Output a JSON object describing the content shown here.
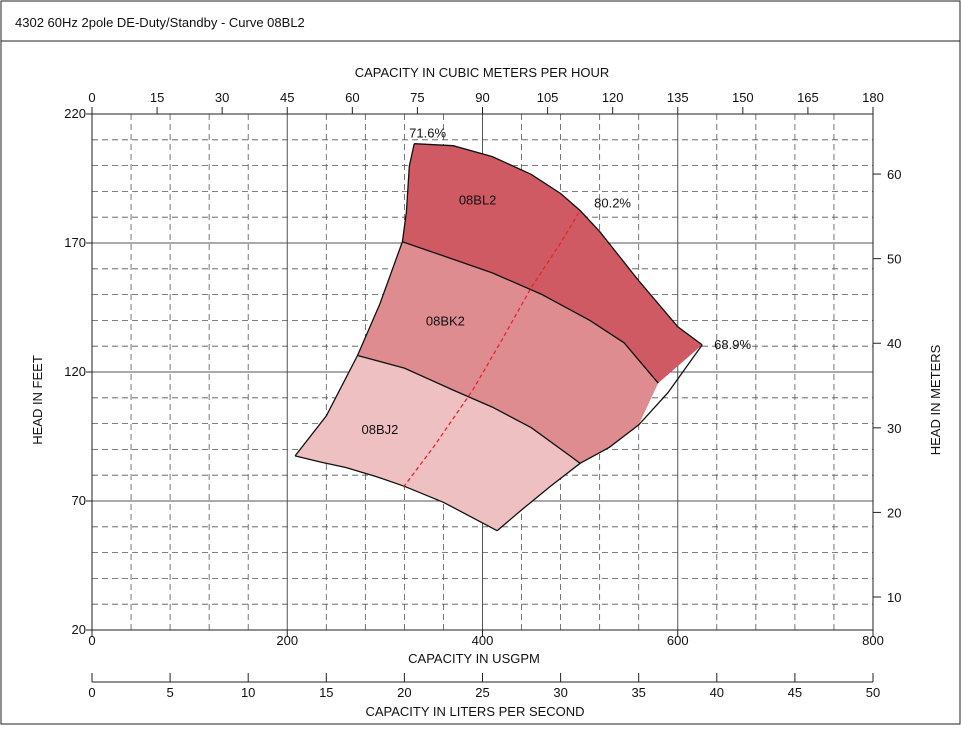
{
  "header": {
    "title": "4302 60Hz 2pole DE-Duty/Standby - Curve 08BL2"
  },
  "colors": {
    "region_08BL2": "#cf5a64",
    "region_08BK2": "#df8c91",
    "region_08BJ2": "#eec0c2",
    "bep_line": "#e8242c",
    "grid": "#555555",
    "border": "#222222"
  },
  "chart_data": {
    "type": "area",
    "title": "",
    "axes": {
      "x_bottom": {
        "label": "CAPACITY IN USGPM",
        "range": [
          0,
          800
        ],
        "ticks": [
          0,
          200,
          400,
          600,
          800
        ],
        "grid_step": 40
      },
      "x_bottom2": {
        "label": "CAPACITY IN LITERS PER SECOND",
        "range": [
          0,
          50
        ],
        "ticks": [
          0,
          5,
          10,
          15,
          20,
          25,
          30,
          35,
          40,
          45,
          50
        ]
      },
      "x_top": {
        "label": "CAPACITY IN CUBIC METERS PER HOUR",
        "range": [
          0,
          180
        ],
        "ticks": [
          0,
          15,
          30,
          45,
          60,
          75,
          90,
          105,
          120,
          135,
          150,
          165,
          180
        ]
      },
      "y_left": {
        "label": "HEAD IN FEET",
        "range": [
          20,
          220
        ],
        "ticks": [
          20,
          70,
          120,
          170,
          220
        ],
        "grid_step": 10
      },
      "y_right": {
        "label": "HEAD IN METERS",
        "range": [
          6.1,
          67.1
        ],
        "ticks": [
          10,
          20,
          30,
          40,
          50,
          60
        ]
      }
    },
    "grid": true,
    "regions": [
      {
        "name": "08BL2",
        "fill": "#cf5a64",
        "top_curve": [
          [
            330,
            208.5
          ],
          [
            370,
            207.7
          ],
          [
            410,
            203.5
          ],
          [
            450,
            196.6
          ],
          [
            480,
            189.2
          ],
          [
            500,
            182.6
          ],
          [
            520,
            174.4
          ],
          [
            560,
            155.4
          ],
          [
            600,
            137.5
          ],
          [
            625,
            130.5
          ]
        ],
        "bottom_curve": [
          [
            318,
            170.5
          ],
          [
            360,
            165.0
          ],
          [
            410,
            158.4
          ],
          [
            460,
            150.2
          ],
          [
            510,
            140.0
          ],
          [
            545,
            131.3
          ],
          [
            580,
            115.7
          ],
          [
            625,
            130.5
          ]
        ]
      },
      {
        "name": "08BK2",
        "fill": "#df8c91",
        "top_curve": [
          [
            318,
            170.5
          ],
          [
            360,
            165.0
          ],
          [
            410,
            158.4
          ],
          [
            460,
            150.2
          ],
          [
            510,
            140.0
          ],
          [
            545,
            131.3
          ],
          [
            580,
            115.7
          ]
        ],
        "bottom_curve": [
          [
            272,
            126.4
          ],
          [
            320,
            121.5
          ],
          [
            370,
            113.0
          ],
          [
            410,
            106.4
          ],
          [
            450,
            98.4
          ],
          [
            490,
            87.4
          ],
          [
            500,
            84.6
          ]
        ]
      },
      {
        "name": "08BJ2",
        "fill": "#eec0c2",
        "top_curve": [
          [
            272,
            126.4
          ],
          [
            320,
            121.5
          ],
          [
            370,
            113.0
          ],
          [
            410,
            106.4
          ],
          [
            450,
            98.4
          ],
          [
            490,
            87.4
          ],
          [
            500,
            84.6
          ]
        ],
        "bottom_curve": [
          [
            208,
            87.5
          ],
          [
            235,
            85.0
          ],
          [
            260,
            83.0
          ],
          [
            290,
            79.6
          ],
          [
            320,
            75.7
          ],
          [
            360,
            69.5
          ],
          [
            400,
            61.5
          ],
          [
            415,
            58.5
          ]
        ]
      }
    ],
    "outline": {
      "left_edge": [
        [
          208,
          87.5
        ],
        [
          240,
          103.0
        ],
        [
          272,
          126.4
        ],
        [
          295,
          146.5
        ],
        [
          318,
          170.5
        ],
        [
          322,
          182.0
        ],
        [
          325,
          199.7
        ],
        [
          330,
          208.5
        ]
      ],
      "right_edge": [
        [
          625,
          130.5
        ],
        [
          590,
          112.0
        ],
        [
          560,
          99.5
        ],
        [
          530,
          90.8
        ],
        [
          500,
          84.6
        ],
        [
          470,
          75.8
        ],
        [
          440,
          66.5
        ],
        [
          415,
          58.5
        ]
      ]
    },
    "bep_line": [
      [
        319,
        75.4
      ],
      [
        350,
        91.0
      ],
      [
        390,
        113.0
      ],
      [
        420,
        132.5
      ],
      [
        450,
        152.8
      ],
      [
        480,
        170.0
      ],
      [
        500,
        182.6
      ]
    ],
    "annotations": [
      {
        "text": "71.6%",
        "x": 330,
        "y": 208.5
      },
      {
        "text": "80.2%",
        "x": 500,
        "y": 182.6
      },
      {
        "text": "68.9%",
        "x": 625,
        "y": 130.5
      },
      {
        "text": "08BL2",
        "x": 395,
        "y": 186.5
      },
      {
        "text": "08BK2",
        "x": 362,
        "y": 139.5
      },
      {
        "text": "08BJ2",
        "x": 295,
        "y": 97.5
      }
    ]
  }
}
